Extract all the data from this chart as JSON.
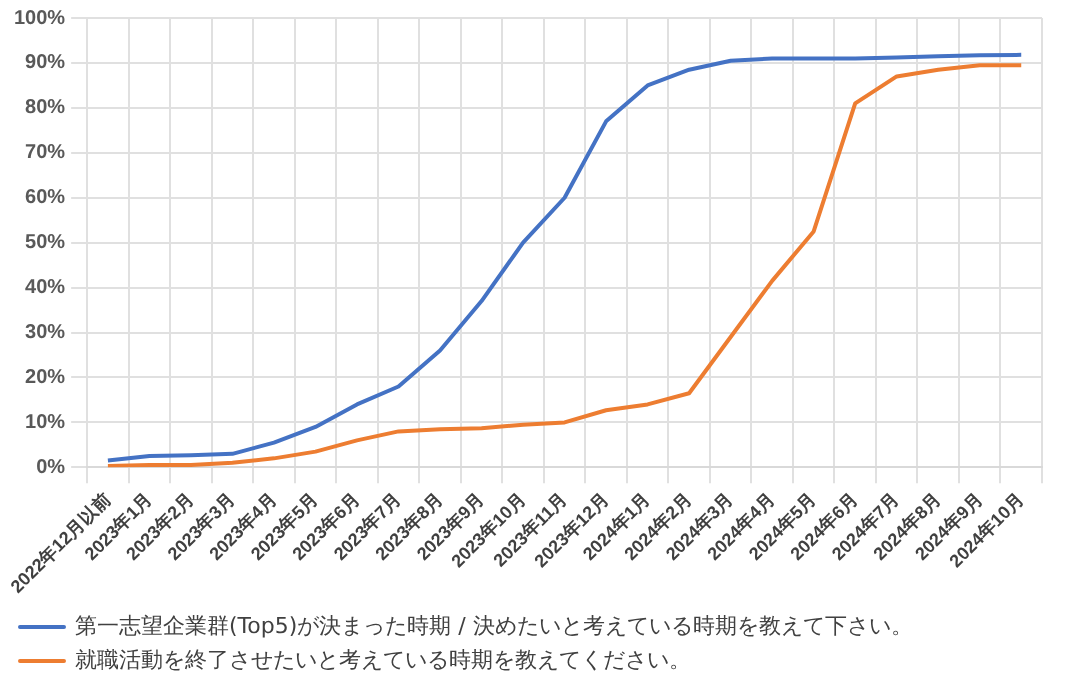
{
  "chart_data": {
    "type": "line",
    "categories": [
      "2022年12月以前",
      "2023年1月",
      "2023年2月",
      "2023年3月",
      "2023年4月",
      "2023年5月",
      "2023年6月",
      "2023年7月",
      "2023年8月",
      "2023年9月",
      "2023年10月",
      "2023年11月",
      "2023年12月",
      "2024年1月",
      "2024年2月",
      "2024年3月",
      "2024年4月",
      "2024年5月",
      "2024年6月",
      "2024年7月",
      "2024年8月",
      "2024年9月",
      "2024年10月"
    ],
    "series": [
      {
        "name": "第一志望企業群(Top5)が決まった時期 / 決めたいと考えている時期を教えて下さい。",
        "color": "#4472c4",
        "values": [
          1.5,
          2.5,
          2.7,
          3,
          5.5,
          9,
          14,
          18,
          26,
          37,
          50,
          60,
          77,
          85,
          88.5,
          90.5,
          91,
          91,
          91,
          91.2,
          91.5,
          91.7,
          91.8
        ]
      },
      {
        "name": "就職活動を終了させたいと考えている時期を教えてください。",
        "color": "#ed7d31",
        "values": [
          0.3,
          0.5,
          0.5,
          1,
          2,
          3.5,
          6,
          8,
          8.5,
          8.7,
          9.5,
          10,
          12.7,
          14,
          16.5,
          29,
          41.5,
          52.5,
          81,
          87,
          88.5,
          89.5,
          89.5
        ]
      }
    ],
    "ylim": [
      0,
      100
    ],
    "yticks": [
      {
        "value": 0,
        "label": "0%"
      },
      {
        "value": 10,
        "label": "10%"
      },
      {
        "value": 20,
        "label": "20%"
      },
      {
        "value": 30,
        "label": "30%"
      },
      {
        "value": 40,
        "label": "40%"
      },
      {
        "value": 50,
        "label": "50%"
      },
      {
        "value": 60,
        "label": "60%"
      },
      {
        "value": 70,
        "label": "70%"
      },
      {
        "value": 80,
        "label": "80%"
      },
      {
        "value": 90,
        "label": "90%"
      },
      {
        "value": 100,
        "label": "100%"
      }
    ],
    "grid": true,
    "legend": "bottom",
    "marker": "none",
    "line_style": "solid"
  }
}
